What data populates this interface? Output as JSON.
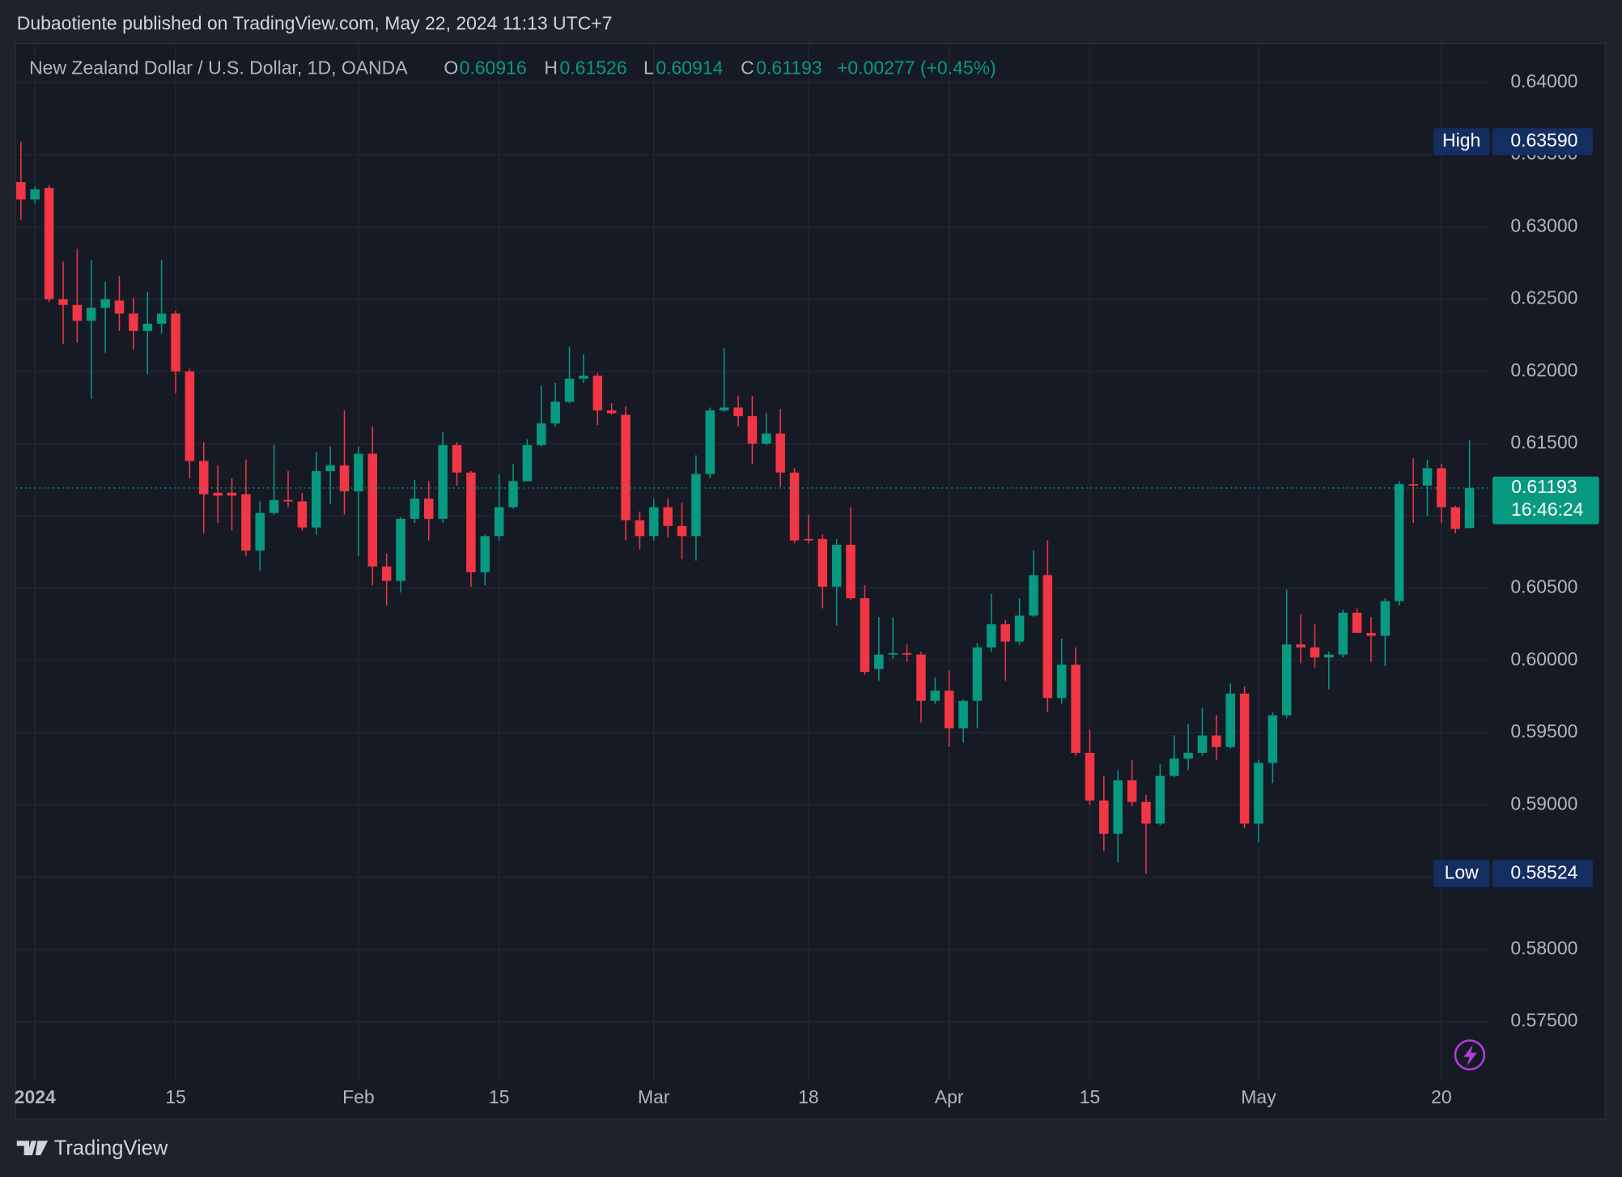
{
  "header": {
    "title": "Dubaotiente published on TradingView.com, May 22, 2024 11:13 UTC+7"
  },
  "chart_data": {
    "type": "candlestick",
    "title": "New Zealand Dollar / U.S. Dollar, 1D, OANDA",
    "ohlc_letters": [
      "O",
      "H",
      "L",
      "C"
    ],
    "change": "+0.00277 (+0.45%)",
    "up_color": "#089981",
    "down_color": "#f23645",
    "grid": true,
    "categories": [
      null,
      "2024",
      null,
      null,
      null,
      null,
      null,
      null,
      null,
      null,
      null,
      "15",
      null,
      null,
      null,
      null,
      null,
      null,
      null,
      null,
      null,
      null,
      null,
      null,
      "Feb",
      null,
      null,
      null,
      null,
      null,
      null,
      null,
      null,
      null,
      "15",
      null,
      null,
      null,
      null,
      null,
      null,
      null,
      null,
      null,
      null,
      "Mar",
      null,
      null,
      null,
      null,
      null,
      null,
      null,
      null,
      null,
      null,
      "18",
      null,
      null,
      null,
      null,
      null,
      null,
      null,
      null,
      null,
      "Apr",
      null,
      null,
      null,
      null,
      null,
      null,
      null,
      null,
      null,
      "15",
      null,
      null,
      null,
      null,
      null,
      null,
      null,
      null,
      null,
      null,
      null,
      "May",
      null,
      null,
      null,
      null,
      null,
      null,
      null,
      null,
      null,
      null,
      null,
      null,
      "20",
      null,
      null
    ],
    "open": [
      0.6331,
      0.6319,
      0.6327,
      0.625,
      0.6246,
      0.6235,
      0.6244,
      0.6249,
      0.624,
      0.6228,
      0.6233,
      0.624,
      0.62,
      0.6138,
      0.6116,
      0.6116,
      0.6115,
      0.6076,
      0.6102,
      0.6111,
      0.611,
      0.6092,
      0.6131,
      0.6135,
      0.6117,
      0.6143,
      0.6065,
      0.6055,
      0.6098,
      0.6112,
      0.6098,
      0.6149,
      0.613,
      0.6061,
      0.6086,
      0.6106,
      0.6124,
      0.6149,
      0.6164,
      0.6179,
      0.6195,
      0.6197,
      0.6173,
      0.617,
      0.6097,
      0.6086,
      0.6106,
      0.6093,
      0.6086,
      0.6129,
      0.6173,
      0.6175,
      0.6169,
      0.615,
      0.6157,
      0.613,
      0.6084,
      0.6084,
      0.6051,
      0.608,
      0.6043,
      0.5994,
      0.6004,
      0.6005,
      0.6004,
      0.5972,
      0.5979,
      0.5953,
      0.5972,
      0.6009,
      0.6025,
      0.6013,
      0.6031,
      0.6059,
      0.5974,
      0.5997,
      0.5936,
      0.5903,
      0.588,
      0.5917,
      0.5902,
      0.5887,
      0.592,
      0.5932,
      0.5936,
      0.5948,
      0.594,
      0.5977,
      0.5887,
      0.5929,
      0.5962,
      0.6011,
      0.6009,
      0.6002,
      0.6004,
      0.6033,
      0.6019,
      0.6017,
      0.6041,
      0.6122,
      0.6121,
      0.6133,
      0.6106,
      0.60916
    ],
    "high": [
      0.6359,
      0.6328,
      0.6329,
      0.6276,
      0.6285,
      0.6277,
      0.6262,
      0.6266,
      0.6251,
      0.6255,
      0.6277,
      0.6242,
      0.6202,
      0.6151,
      0.6135,
      0.6126,
      0.6139,
      0.611,
      0.6149,
      0.6131,
      0.6116,
      0.6144,
      0.6148,
      0.6173,
      0.6148,
      0.6162,
      0.6074,
      0.6099,
      0.6125,
      0.6124,
      0.6158,
      0.6151,
      0.6131,
      0.6087,
      0.6129,
      0.6136,
      0.6153,
      0.619,
      0.6192,
      0.6217,
      0.6212,
      0.6199,
      0.6178,
      0.6176,
      0.6103,
      0.6112,
      0.6112,
      0.6109,
      0.6142,
      0.6175,
      0.6216,
      0.6183,
      0.6183,
      0.6171,
      0.6174,
      0.6133,
      0.6101,
      0.6087,
      0.6084,
      0.6106,
      0.6052,
      0.603,
      0.603,
      0.6011,
      0.6006,
      0.5988,
      0.5993,
      0.5973,
      0.6012,
      0.6046,
      0.6028,
      0.6043,
      0.6076,
      0.6083,
      0.6015,
      0.6009,
      0.5952,
      0.592,
      0.5924,
      0.5931,
      0.5907,
      0.5928,
      0.5948,
      0.5956,
      0.5967,
      0.5962,
      0.5984,
      0.5982,
      0.5931,
      0.5964,
      0.6049,
      0.6032,
      0.6025,
      0.6006,
      0.6035,
      0.6036,
      0.603,
      0.6043,
      0.6124,
      0.614,
      0.6139,
      0.6136,
      0.6107,
      0.61526
    ],
    "low": [
      0.6305,
      0.6316,
      0.6248,
      0.6219,
      0.622,
      0.6181,
      0.6213,
      0.6228,
      0.6215,
      0.6198,
      0.6226,
      0.6185,
      0.6126,
      0.6088,
      0.6095,
      0.609,
      0.6072,
      0.6062,
      0.6101,
      0.6106,
      0.609,
      0.6087,
      0.6108,
      0.6101,
      0.6072,
      0.6052,
      0.6038,
      0.6047,
      0.6095,
      0.6083,
      0.6095,
      0.6121,
      0.6051,
      0.6052,
      0.6083,
      0.6105,
      0.6124,
      0.6148,
      0.6162,
      0.6178,
      0.6192,
      0.6163,
      0.617,
      0.6083,
      0.6077,
      0.6083,
      0.6085,
      0.607,
      0.6069,
      0.6126,
      0.6172,
      0.6162,
      0.6136,
      0.6149,
      0.612,
      0.6081,
      0.6081,
      0.6036,
      0.6024,
      0.6042,
      0.599,
      0.5986,
      0.6001,
      0.5999,
      0.5957,
      0.597,
      0.594,
      0.5943,
      0.5953,
      0.6006,
      0.5986,
      0.6011,
      0.603,
      0.5964,
      0.597,
      0.5934,
      0.59,
      0.5868,
      0.586,
      0.5899,
      0.58524,
      0.5886,
      0.5919,
      0.5924,
      0.5934,
      0.5931,
      0.5939,
      0.5884,
      0.5874,
      0.5915,
      0.596,
      0.5998,
      0.5995,
      0.598,
      0.6002,
      0.6019,
      0.5999,
      0.5996,
      0.6038,
      0.6095,
      0.61,
      0.6095,
      0.6088,
      0.60914
    ],
    "close": [
      0.6319,
      0.6326,
      0.625,
      0.6246,
      0.6235,
      0.6244,
      0.625,
      0.624,
      0.6228,
      0.6233,
      0.624,
      0.62,
      0.6138,
      0.6115,
      0.6114,
      0.6114,
      0.6076,
      0.6102,
      0.6111,
      0.611,
      0.6092,
      0.6131,
      0.6135,
      0.6117,
      0.6143,
      0.6065,
      0.6055,
      0.6098,
      0.6112,
      0.6098,
      0.6149,
      0.613,
      0.6061,
      0.6086,
      0.6106,
      0.6124,
      0.6149,
      0.6164,
      0.6179,
      0.6195,
      0.6197,
      0.6173,
      0.6171,
      0.6097,
      0.6086,
      0.6106,
      0.6093,
      0.6086,
      0.6129,
      0.6173,
      0.6175,
      0.6169,
      0.615,
      0.6157,
      0.613,
      0.6083,
      0.6083,
      0.6051,
      0.608,
      0.6043,
      0.5992,
      0.6004,
      0.6005,
      0.6004,
      0.5972,
      0.5979,
      0.5953,
      0.5972,
      0.6009,
      0.6025,
      0.6013,
      0.6031,
      0.6059,
      0.5974,
      0.5997,
      0.5936,
      0.5903,
      0.588,
      0.5917,
      0.5902,
      0.5887,
      0.592,
      0.5932,
      0.5936,
      0.5948,
      0.594,
      0.5977,
      0.5887,
      0.5929,
      0.5962,
      0.6011,
      0.6009,
      0.6002,
      0.6004,
      0.6033,
      0.6019,
      0.6017,
      0.6041,
      0.6122,
      0.6121,
      0.6133,
      0.6106,
      0.6091,
      0.61193
    ],
    "ylim": [
      0.5709,
      0.6427
    ],
    "yticks": [
      {
        "value": 0.575,
        "label": "0.57500"
      },
      {
        "value": 0.58,
        "label": "0.58000"
      },
      {
        "value": 0.585,
        "label": "0.58500"
      },
      {
        "value": 0.59,
        "label": "0.59000"
      },
      {
        "value": 0.595,
        "label": "0.59500"
      },
      {
        "value": 0.6,
        "label": "0.60000"
      },
      {
        "value": 0.605,
        "label": "0.60500"
      },
      {
        "value": 0.61,
        "label": "0.61000"
      },
      {
        "value": 0.615,
        "label": "0.61500"
      },
      {
        "value": 0.62,
        "label": "0.62000"
      },
      {
        "value": 0.625,
        "label": "0.62500"
      },
      {
        "value": 0.63,
        "label": "0.63000"
      },
      {
        "value": 0.635,
        "label": "0.63500"
      },
      {
        "value": 0.64,
        "label": "0.64000"
      }
    ],
    "high_marker": {
      "text": "High",
      "value": {
        "value": 0.6359,
        "label": "0.63590"
      }
    },
    "low_marker": {
      "text": "Low",
      "value": 0.58524
    },
    "countdown": "16:46:24"
  },
  "footer": {
    "brand": "TradingView"
  }
}
